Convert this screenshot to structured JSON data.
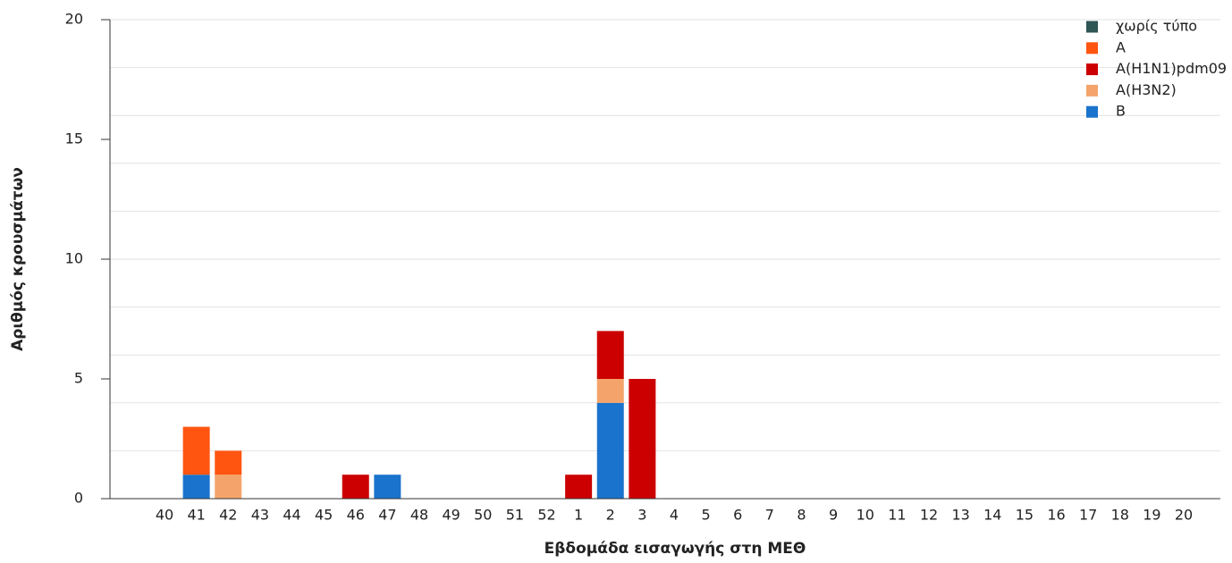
{
  "chart_data": {
    "type": "stacked_bar",
    "x_label": "Εβδομάδα εισαγωγής στη ΜΕΘ",
    "y_label": "Αριθμός κρουσμάτων",
    "categories": [
      "40",
      "41",
      "42",
      "43",
      "44",
      "45",
      "46",
      "47",
      "48",
      "49",
      "50",
      "51",
      "52",
      "1",
      "2",
      "3",
      "4",
      "5",
      "6",
      "7",
      "8",
      "9",
      "10",
      "11",
      "12",
      "13",
      "14",
      "15",
      "16",
      "17",
      "18",
      "19",
      "20"
    ],
    "series": [
      {
        "name": "B",
        "color": "#1a73cc",
        "values": [
          0,
          1,
          0,
          0,
          0,
          0,
          0,
          1,
          0,
          0,
          0,
          0,
          0,
          0,
          4,
          0,
          0,
          0,
          0,
          0,
          0,
          0,
          0,
          0,
          0,
          0,
          0,
          0,
          0,
          0,
          0,
          0,
          0
        ]
      },
      {
        "name": "A(H3N2)",
        "color": "#f4a46a",
        "values": [
          0,
          0,
          1,
          0,
          0,
          0,
          0,
          0,
          0,
          0,
          0,
          0,
          0,
          0,
          1,
          0,
          0,
          0,
          0,
          0,
          0,
          0,
          0,
          0,
          0,
          0,
          0,
          0,
          0,
          0,
          0,
          0,
          0
        ]
      },
      {
        "name": "A(H1N1)pdm09",
        "color": "#cc0000",
        "values": [
          0,
          0,
          0,
          0,
          0,
          0,
          1,
          0,
          0,
          0,
          0,
          0,
          0,
          1,
          2,
          5,
          0,
          0,
          0,
          0,
          0,
          0,
          0,
          0,
          0,
          0,
          0,
          0,
          0,
          0,
          0,
          0,
          0
        ]
      },
      {
        "name": "A",
        "color": "#ff5511",
        "values": [
          0,
          2,
          1,
          0,
          0,
          0,
          0,
          0,
          0,
          0,
          0,
          0,
          0,
          0,
          0,
          0,
          0,
          0,
          0,
          0,
          0,
          0,
          0,
          0,
          0,
          0,
          0,
          0,
          0,
          0,
          0,
          0,
          0
        ]
      },
      {
        "name": "χωρίς τύπο",
        "color": "#2f5555",
        "values": [
          0,
          0,
          0,
          0,
          0,
          0,
          0,
          0,
          0,
          0,
          0,
          0,
          0,
          0,
          0,
          0,
          0,
          0,
          0,
          0,
          0,
          0,
          0,
          0,
          0,
          0,
          0,
          0,
          0,
          0,
          0,
          0,
          0
        ]
      }
    ],
    "ylim": [
      0,
      20
    ],
    "yticks": [
      0,
      5,
      10,
      15,
      20
    ],
    "ygrid": [
      2,
      4,
      6,
      8,
      10,
      12,
      14,
      16,
      18,
      20
    ],
    "legend": "top-right"
  }
}
